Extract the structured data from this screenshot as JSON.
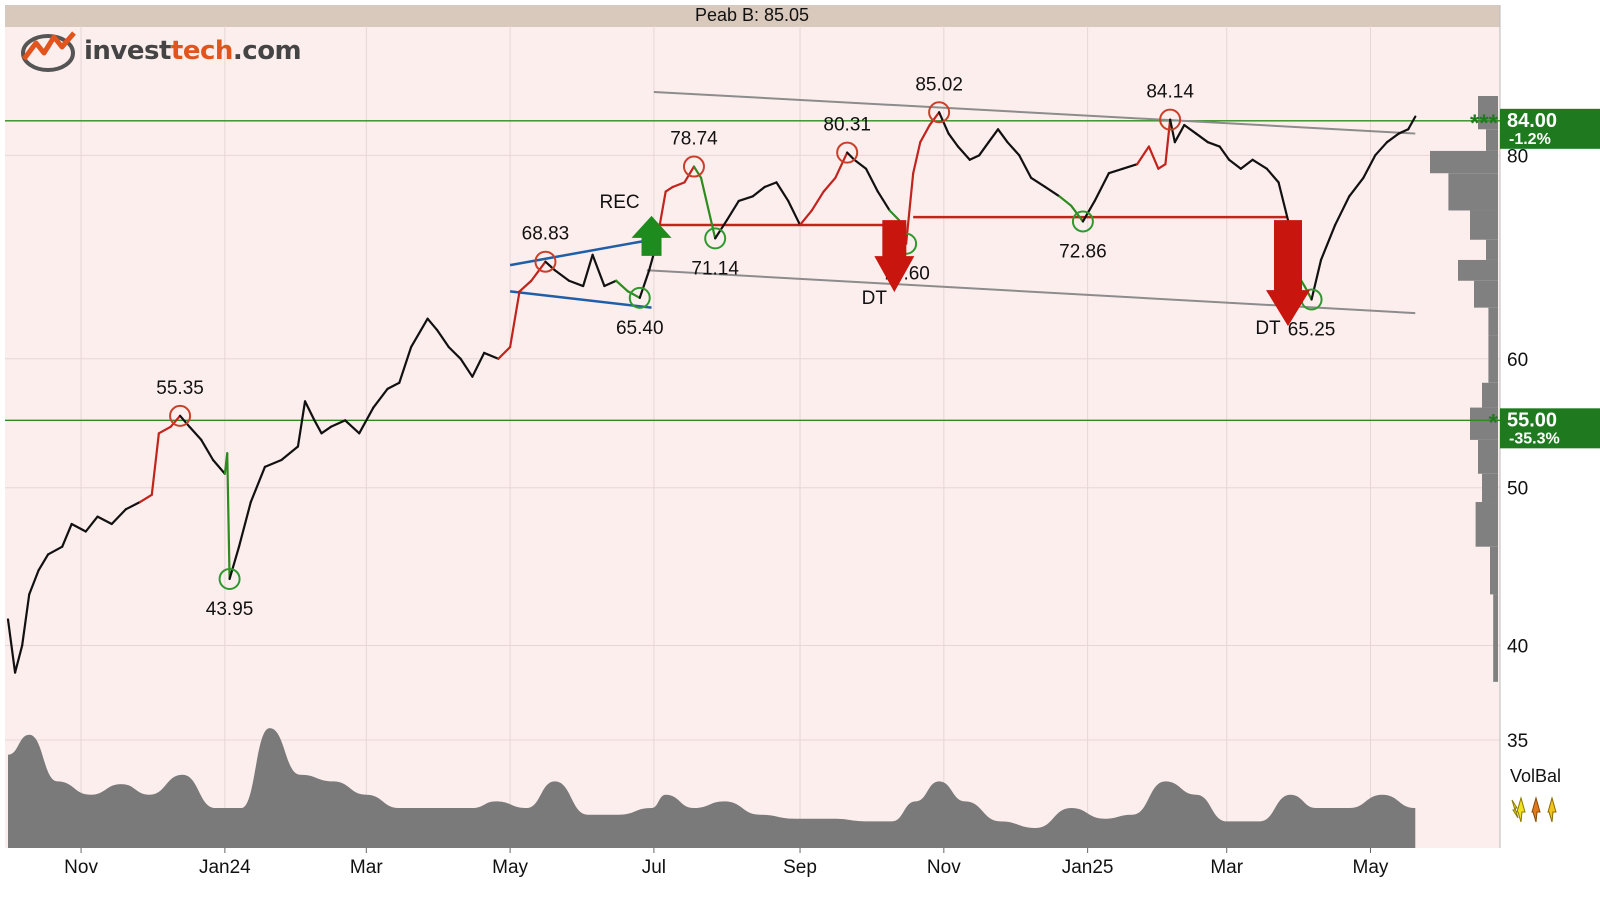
{
  "header": {
    "title": "Peab B: 85.05"
  },
  "brand": {
    "name_left": "invest",
    "name_accent": "tech",
    "name_right": ".com",
    "colors": {
      "accent": "#e2541e",
      "text": "#444444"
    }
  },
  "side_panel": {
    "volbal_label": "VolBal"
  },
  "chart_data": {
    "type": "line",
    "title": "Peab B: 85.05",
    "y_scale": "log",
    "ylim": [
      35,
      87
    ],
    "y_ticks": [
      35,
      40,
      50,
      60,
      80
    ],
    "x_range": [
      "2023-10-01",
      "2025-05-22"
    ],
    "x_ticks": [
      {
        "date": "2023-11-01",
        "label": "Nov"
      },
      {
        "date": "2024-01-01",
        "label": "Jan24"
      },
      {
        "date": "2024-03-01",
        "label": "Mar"
      },
      {
        "date": "2024-05-01",
        "label": "May"
      },
      {
        "date": "2024-07-01",
        "label": "Jul"
      },
      {
        "date": "2024-09-01",
        "label": "Sep"
      },
      {
        "date": "2024-11-01",
        "label": "Nov"
      },
      {
        "date": "2025-01-01",
        "label": "Jan25"
      },
      {
        "date": "2025-03-01",
        "label": "Mar"
      },
      {
        "date": "2025-05-01",
        "label": "May"
      }
    ],
    "grid": true,
    "series": [
      {
        "values": [
          [
            "2023-10-01",
            41.5
          ],
          [
            "2023-10-04",
            38.5
          ],
          [
            "2023-10-07",
            40.0
          ],
          [
            "2023-10-10",
            43.0
          ],
          [
            "2023-10-14",
            44.5
          ],
          [
            "2023-10-18",
            45.5
          ],
          [
            "2023-10-24",
            46.0
          ],
          [
            "2023-10-28",
            47.5
          ],
          [
            "2023-11-03",
            47.0
          ],
          [
            "2023-11-08",
            48.0
          ],
          [
            "2023-11-14",
            47.5
          ],
          [
            "2023-11-20",
            48.5
          ],
          [
            "2023-11-26",
            49.0
          ],
          [
            "2023-12-01",
            49.5
          ],
          [
            "2023-12-04",
            54.0
          ],
          [
            "2023-12-09",
            54.5
          ],
          [
            "2023-12-13",
            55.35
          ],
          [
            "2023-12-17",
            54.5
          ],
          [
            "2023-12-22",
            53.5
          ],
          [
            "2023-12-27",
            52.0
          ],
          [
            "2024-01-01",
            51.0
          ],
          [
            "2024-01-02",
            52.5
          ],
          [
            "2024-01-03",
            43.95
          ],
          [
            "2024-01-07",
            46.0
          ],
          [
            "2024-01-12",
            49.0
          ],
          [
            "2024-01-18",
            51.5
          ],
          [
            "2024-01-25",
            52.0
          ],
          [
            "2024-02-01",
            53.0
          ],
          [
            "2024-02-04",
            56.5
          ],
          [
            "2024-02-08",
            55.0
          ],
          [
            "2024-02-11",
            54.0
          ],
          [
            "2024-02-15",
            54.5
          ],
          [
            "2024-02-21",
            55.0
          ],
          [
            "2024-02-27",
            54.0
          ],
          [
            "2024-03-04",
            56.0
          ],
          [
            "2024-03-10",
            57.5
          ],
          [
            "2024-03-15",
            58.0
          ],
          [
            "2024-03-20",
            61.0
          ],
          [
            "2024-03-27",
            63.5
          ],
          [
            "2024-03-31",
            62.5
          ],
          [
            "2024-04-05",
            61.0
          ],
          [
            "2024-04-10",
            60.0
          ],
          [
            "2024-04-15",
            58.5
          ],
          [
            "2024-04-20",
            60.5
          ],
          [
            "2024-04-26",
            60.0
          ],
          [
            "2024-05-01",
            61.0
          ],
          [
            "2024-05-05",
            66.0
          ],
          [
            "2024-05-10",
            67.0
          ],
          [
            "2024-05-16",
            68.83
          ],
          [
            "2024-05-20",
            68.0
          ],
          [
            "2024-05-26",
            67.0
          ],
          [
            "2024-06-01",
            66.5
          ],
          [
            "2024-06-05",
            69.5
          ],
          [
            "2024-06-10",
            66.5
          ],
          [
            "2024-06-15",
            67.0
          ],
          [
            "2024-06-20",
            66.0
          ],
          [
            "2024-06-25",
            65.4
          ],
          [
            "2024-06-29",
            68.0
          ],
          [
            "2024-07-02",
            70.5
          ],
          [
            "2024-07-06",
            76.0
          ],
          [
            "2024-07-09",
            76.5
          ],
          [
            "2024-07-14",
            77.0
          ],
          [
            "2024-07-18",
            78.74
          ],
          [
            "2024-07-21",
            77.5
          ],
          [
            "2024-07-27",
            71.14
          ],
          [
            "2024-08-01",
            73.0
          ],
          [
            "2024-08-06",
            75.0
          ],
          [
            "2024-08-12",
            75.5
          ],
          [
            "2024-08-17",
            76.5
          ],
          [
            "2024-08-22",
            77.0
          ],
          [
            "2024-08-27",
            75.0
          ],
          [
            "2024-09-01",
            72.5
          ],
          [
            "2024-09-06",
            74.0
          ],
          [
            "2024-09-11",
            76.0
          ],
          [
            "2024-09-16",
            77.5
          ],
          [
            "2024-09-21",
            80.31
          ],
          [
            "2024-09-24",
            79.5
          ],
          [
            "2024-09-29",
            78.5
          ],
          [
            "2024-10-04",
            76.0
          ],
          [
            "2024-10-09",
            74.0
          ],
          [
            "2024-10-13",
            73.0
          ],
          [
            "2024-10-16",
            70.6
          ],
          [
            "2024-10-19",
            78.0
          ],
          [
            "2024-10-22",
            81.5
          ],
          [
            "2024-10-26",
            83.5
          ],
          [
            "2024-10-30",
            85.02
          ],
          [
            "2024-11-03",
            82.5
          ],
          [
            "2024-11-07",
            81.0
          ],
          [
            "2024-11-12",
            79.5
          ],
          [
            "2024-11-16",
            80.0
          ],
          [
            "2024-11-20",
            81.5
          ],
          [
            "2024-11-24",
            83.0
          ],
          [
            "2024-11-28",
            81.5
          ],
          [
            "2024-12-03",
            80.0
          ],
          [
            "2024-12-08",
            77.5
          ],
          [
            "2024-12-14",
            76.5
          ],
          [
            "2024-12-20",
            75.5
          ],
          [
            "2024-12-25",
            74.5
          ],
          [
            "2024-12-30",
            72.86
          ],
          [
            "2025-01-04",
            75.0
          ],
          [
            "2025-01-10",
            78.0
          ],
          [
            "2025-01-16",
            78.5
          ],
          [
            "2025-01-22",
            79.0
          ],
          [
            "2025-01-27",
            81.0
          ],
          [
            "2025-01-31",
            78.5
          ],
          [
            "2025-02-03",
            79.0
          ],
          [
            "2025-02-05",
            84.14
          ],
          [
            "2025-02-07",
            81.5
          ],
          [
            "2025-02-11",
            83.5
          ],
          [
            "2025-02-16",
            82.5
          ],
          [
            "2025-02-21",
            81.5
          ],
          [
            "2025-02-26",
            81.0
          ],
          [
            "2025-03-02",
            79.5
          ],
          [
            "2025-03-07",
            78.5
          ],
          [
            "2025-03-12",
            79.5
          ],
          [
            "2025-03-18",
            78.5
          ],
          [
            "2025-03-23",
            77.0
          ],
          [
            "2025-03-27",
            73.0
          ],
          [
            "2025-03-30",
            68.0
          ],
          [
            "2025-04-03",
            66.5
          ],
          [
            "2025-04-06",
            65.25
          ],
          [
            "2025-04-10",
            69.0
          ],
          [
            "2025-04-16",
            72.5
          ],
          [
            "2025-04-22",
            75.5
          ],
          [
            "2025-04-28",
            77.5
          ],
          [
            "2025-05-03",
            80.0
          ],
          [
            "2025-05-08",
            81.5
          ],
          [
            "2025-05-13",
            82.5
          ],
          [
            "2025-05-17",
            83.0
          ],
          [
            "2025-05-20",
            84.5
          ]
        ]
      }
    ],
    "extremes": [
      {
        "date": "2023-12-13",
        "value": 55.35,
        "label": "55.35",
        "kind": "top"
      },
      {
        "date": "2024-01-03",
        "value": 43.95,
        "label": "43.95",
        "kind": "bottom"
      },
      {
        "date": "2024-05-16",
        "value": 68.83,
        "label": "68.83",
        "kind": "top"
      },
      {
        "date": "2024-06-25",
        "value": 65.4,
        "label": "65.40",
        "kind": "bottom"
      },
      {
        "date": "2024-07-18",
        "value": 78.74,
        "label": "78.74",
        "kind": "top"
      },
      {
        "date": "2024-07-27",
        "value": 71.14,
        "label": "71.14",
        "kind": "bottom"
      },
      {
        "date": "2024-09-21",
        "value": 80.31,
        "label": "80.31",
        "kind": "top"
      },
      {
        "date": "2024-10-16",
        "value": 70.6,
        "label": "70.60",
        "kind": "bottom"
      },
      {
        "date": "2024-10-30",
        "value": 85.02,
        "label": "85.02",
        "kind": "top"
      },
      {
        "date": "2024-12-30",
        "value": 72.86,
        "label": "72.86",
        "kind": "bottom"
      },
      {
        "date": "2025-02-05",
        "value": 84.14,
        "label": "84.14",
        "kind": "top"
      },
      {
        "date": "2025-04-06",
        "value": 65.25,
        "label": "65.25",
        "kind": "bottom"
      }
    ],
    "signals": [
      {
        "kind": "buy",
        "date": "2024-06-30",
        "value": 72.0,
        "label": "REC"
      },
      {
        "kind": "sell",
        "date": "2024-10-11",
        "value": 73.0,
        "label": "DT"
      },
      {
        "kind": "sell",
        "date": "2025-03-27",
        "value": 73.0,
        "label": "DT"
      }
    ],
    "horizontal_lines": [
      {
        "value": 84.0,
        "color": "#2e8b1e"
      },
      {
        "value": 55.0,
        "color": "#2e8b1e"
      }
    ],
    "price_tags": [
      {
        "value": 84.0,
        "label": "84.00",
        "change": "-1.2%",
        "stars": "***"
      },
      {
        "value": 55.0,
        "label": "55.00",
        "change": "-35.3%",
        "stars": "*"
      }
    ],
    "trend_channel": {
      "upper": [
        [
          "2024-07-01",
          87.5
        ],
        [
          "2025-05-20",
          82.5
        ]
      ],
      "lower": [
        [
          "2024-06-28",
          68.0
        ],
        [
          "2025-05-20",
          64.0
        ]
      ]
    },
    "formation_lines": [
      {
        "color": "#1f5fa8",
        "points": [
          [
            "2024-05-01",
            68.5
          ],
          [
            "2024-06-30",
            71.0
          ]
        ]
      },
      {
        "color": "#1f5fa8",
        "points": [
          [
            "2024-05-01",
            66.0
          ],
          [
            "2024-06-30",
            64.5
          ]
        ]
      },
      {
        "color": "#c0241c",
        "points": [
          [
            "2024-07-01",
            72.5
          ],
          [
            "2024-10-16",
            72.5
          ]
        ]
      },
      {
        "color": "#c0241c",
        "points": [
          [
            "2024-10-19",
            73.3
          ],
          [
            "2025-03-27",
            73.3
          ]
        ]
      }
    ],
    "volume_balance": [
      [
        "2023-10-01",
        0.7
      ],
      [
        "2023-10-10",
        0.85
      ],
      [
        "2023-10-22",
        0.5
      ],
      [
        "2023-11-05",
        0.4
      ],
      [
        "2023-11-18",
        0.48
      ],
      [
        "2023-11-30",
        0.4
      ],
      [
        "2023-12-14",
        0.55
      ],
      [
        "2023-12-28",
        0.3
      ],
      [
        "2024-01-08",
        0.3
      ],
      [
        "2024-01-20",
        0.9
      ],
      [
        "2024-02-02",
        0.55
      ],
      [
        "2024-02-16",
        0.5
      ],
      [
        "2024-03-01",
        0.4
      ],
      [
        "2024-03-15",
        0.3
      ],
      [
        "2024-03-30",
        0.3
      ],
      [
        "2024-04-15",
        0.3
      ],
      [
        "2024-04-25",
        0.35
      ],
      [
        "2024-05-08",
        0.3
      ],
      [
        "2024-05-20",
        0.5
      ],
      [
        "2024-06-03",
        0.25
      ],
      [
        "2024-06-16",
        0.25
      ],
      [
        "2024-06-30",
        0.3
      ],
      [
        "2024-07-06",
        0.4
      ],
      [
        "2024-07-18",
        0.3
      ],
      [
        "2024-07-31",
        0.35
      ],
      [
        "2024-08-15",
        0.25
      ],
      [
        "2024-08-30",
        0.22
      ],
      [
        "2024-09-15",
        0.22
      ],
      [
        "2024-09-30",
        0.2
      ],
      [
        "2024-10-10",
        0.2
      ],
      [
        "2024-10-20",
        0.35
      ],
      [
        "2024-10-30",
        0.5
      ],
      [
        "2024-11-10",
        0.35
      ],
      [
        "2024-11-25",
        0.2
      ],
      [
        "2024-12-10",
        0.15
      ],
      [
        "2024-12-25",
        0.3
      ],
      [
        "2025-01-08",
        0.22
      ],
      [
        "2025-01-20",
        0.25
      ],
      [
        "2025-02-03",
        0.5
      ],
      [
        "2025-02-16",
        0.4
      ],
      [
        "2025-03-01",
        0.2
      ],
      [
        "2025-03-15",
        0.2
      ],
      [
        "2025-03-28",
        0.4
      ],
      [
        "2025-04-08",
        0.3
      ],
      [
        "2025-04-22",
        0.3
      ],
      [
        "2025-05-06",
        0.4
      ],
      [
        "2025-05-20",
        0.3
      ]
    ],
    "price_distribution": [
      {
        "low": 83.0,
        "high": 87.0,
        "level": 0.25
      },
      {
        "low": 80.5,
        "high": 83.0,
        "level": 0.15
      },
      {
        "low": 78.0,
        "high": 80.5,
        "level": 0.85
      },
      {
        "low": 74.0,
        "high": 78.0,
        "level": 0.62
      },
      {
        "low": 71.0,
        "high": 74.0,
        "level": 0.35
      },
      {
        "low": 69.0,
        "high": 71.0,
        "level": 0.15
      },
      {
        "low": 67.0,
        "high": 69.0,
        "level": 0.5
      },
      {
        "low": 64.5,
        "high": 67.0,
        "level": 0.3
      },
      {
        "low": 62.0,
        "high": 64.5,
        "level": 0.12
      },
      {
        "low": 58.0,
        "high": 62.0,
        "level": 0.12
      },
      {
        "low": 56.0,
        "high": 58.0,
        "level": 0.2
      },
      {
        "low": 53.5,
        "high": 56.0,
        "level": 0.35
      },
      {
        "low": 51.0,
        "high": 53.5,
        "level": 0.25
      },
      {
        "low": 49.0,
        "high": 51.0,
        "level": 0.2
      },
      {
        "low": 46.0,
        "high": 49.0,
        "level": 0.28
      },
      {
        "low": 43.0,
        "high": 46.0,
        "level": 0.1
      },
      {
        "low": 38.0,
        "high": 43.0,
        "level": 0.06
      }
    ],
    "colors": {
      "background": "#fdeeee",
      "header_bar": "#d9c9bd",
      "price_line": "#111111",
      "uptrend_line": "#c0241c",
      "downtrend_line": "#2e8b1e",
      "top_marker": "#c8402a",
      "bottom_marker": "#2e9a2e",
      "channel": "#8c8c8c",
      "buy_arrow": "#1e8b1e",
      "sell_arrow": "#c8150e",
      "volume": "#7a7a7a",
      "tag": "#1f7a1f",
      "grid": "#e6d6d6"
    }
  }
}
